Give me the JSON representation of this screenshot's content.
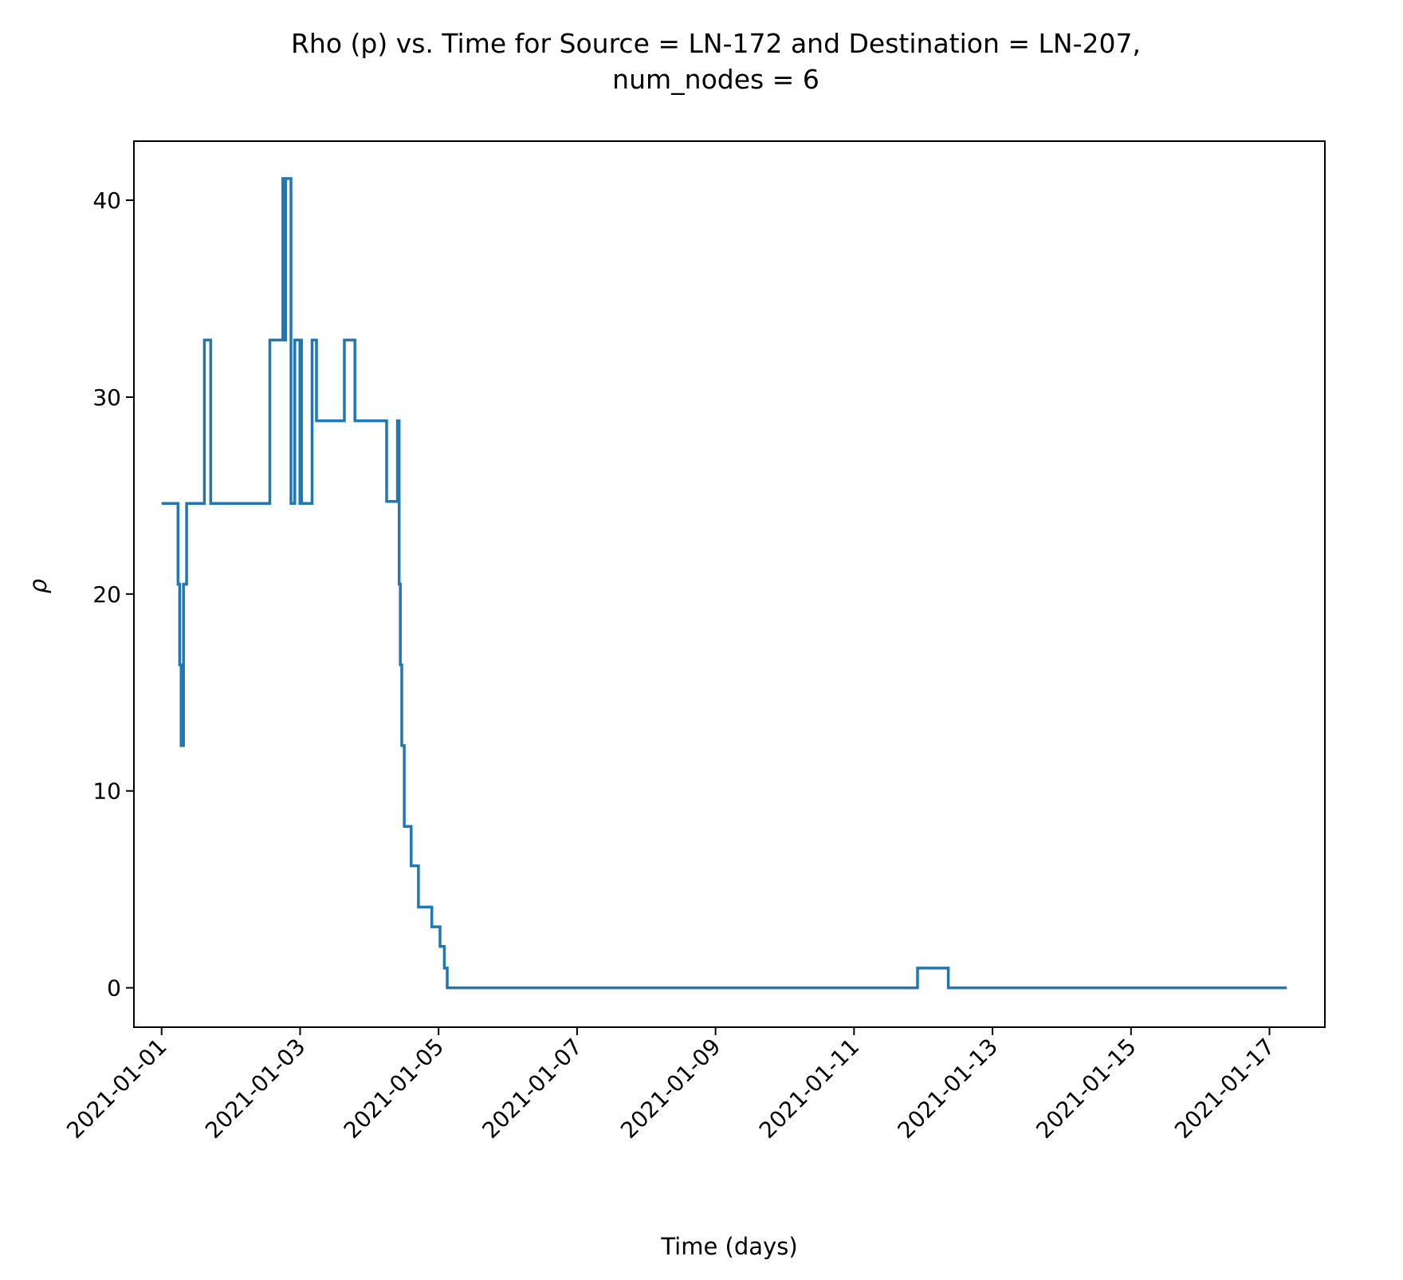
{
  "chart_data": {
    "type": "line",
    "drawstyle": "steps-post",
    "title_line1": "Rho (p) vs. Time for  Source = LN-172 and Destination = LN-207,",
    "title_line2": "num_nodes = 6",
    "xlabel": "Time (days)",
    "ylabel": "ρ",
    "x_axis_type": "date",
    "xlim": [
      "2020-12-31T14:24",
      "2021-01-17T19:12"
    ],
    "ylim": [
      -2,
      43
    ],
    "x_ticks": [
      "2021-01-01",
      "2021-01-03",
      "2021-01-05",
      "2021-01-07",
      "2021-01-09",
      "2021-01-11",
      "2021-01-13",
      "2021-01-15",
      "2021-01-17"
    ],
    "x_tick_labels": [
      "2021-01-01",
      "2021-01-03",
      "2021-01-05",
      "2021-01-07",
      "2021-01-09",
      "2021-01-11",
      "2021-01-13",
      "2021-01-15",
      "2021-01-17"
    ],
    "y_ticks": [
      0,
      10,
      20,
      30,
      40
    ],
    "y_tick_labels": [
      "0",
      "10",
      "20",
      "30",
      "40"
    ],
    "grid": false,
    "legend": "none",
    "line_color": "#1f77b4",
    "series": [
      {
        "x": [
          "2021-01-01T00:00",
          "2021-01-01T05:40",
          "2021-01-01T06:15",
          "2021-01-01T06:45",
          "2021-01-01T07:10",
          "2021-01-01T07:20",
          "2021-01-01T07:35",
          "2021-01-01T08:40",
          "2021-01-01T09:30",
          "2021-01-01T14:50",
          "2021-01-01T17:00",
          "2021-01-02T13:30",
          "2021-01-02T18:00",
          "2021-01-02T18:25",
          "2021-01-02T19:00",
          "2021-01-02T20:50",
          "2021-01-02T22:10",
          "2021-01-02T23:55",
          "2021-01-03T00:15",
          "2021-01-03T00:30",
          "2021-01-03T04:10",
          "2021-01-03T05:40",
          "2021-01-03T07:30",
          "2021-01-03T14:40",
          "2021-01-03T15:20",
          "2021-01-03T19:00",
          "2021-01-04T06:00",
          "2021-01-04T09:45",
          "2021-01-04T10:20",
          "2021-01-04T10:45",
          "2021-01-04T11:15",
          "2021-01-04T12:05",
          "2021-01-04T14:30",
          "2021-01-04T17:00",
          "2021-01-04T21:40",
          "2021-01-05T00:30",
          "2021-01-05T02:00",
          "2021-01-05T03:00",
          "2021-01-05T04:30",
          "2021-01-11T22:00",
          "2021-01-12T08:40",
          "2021-01-17T06:00"
        ],
        "y": [
          24.6,
          20.5,
          16.4,
          12.3,
          16.4,
          12.3,
          20.5,
          24.6,
          24.6,
          32.9,
          24.6,
          32.9,
          41.1,
          32.9,
          41.1,
          24.6,
          32.9,
          24.6,
          32.9,
          24.6,
          32.9,
          28.8,
          28.8,
          28.8,
          32.9,
          28.8,
          24.7,
          28.8,
          20.5,
          16.4,
          12.3,
          8.2,
          6.2,
          4.1,
          3.1,
          2.1,
          1.0,
          0,
          0,
          1.0,
          0,
          0
        ]
      }
    ]
  }
}
